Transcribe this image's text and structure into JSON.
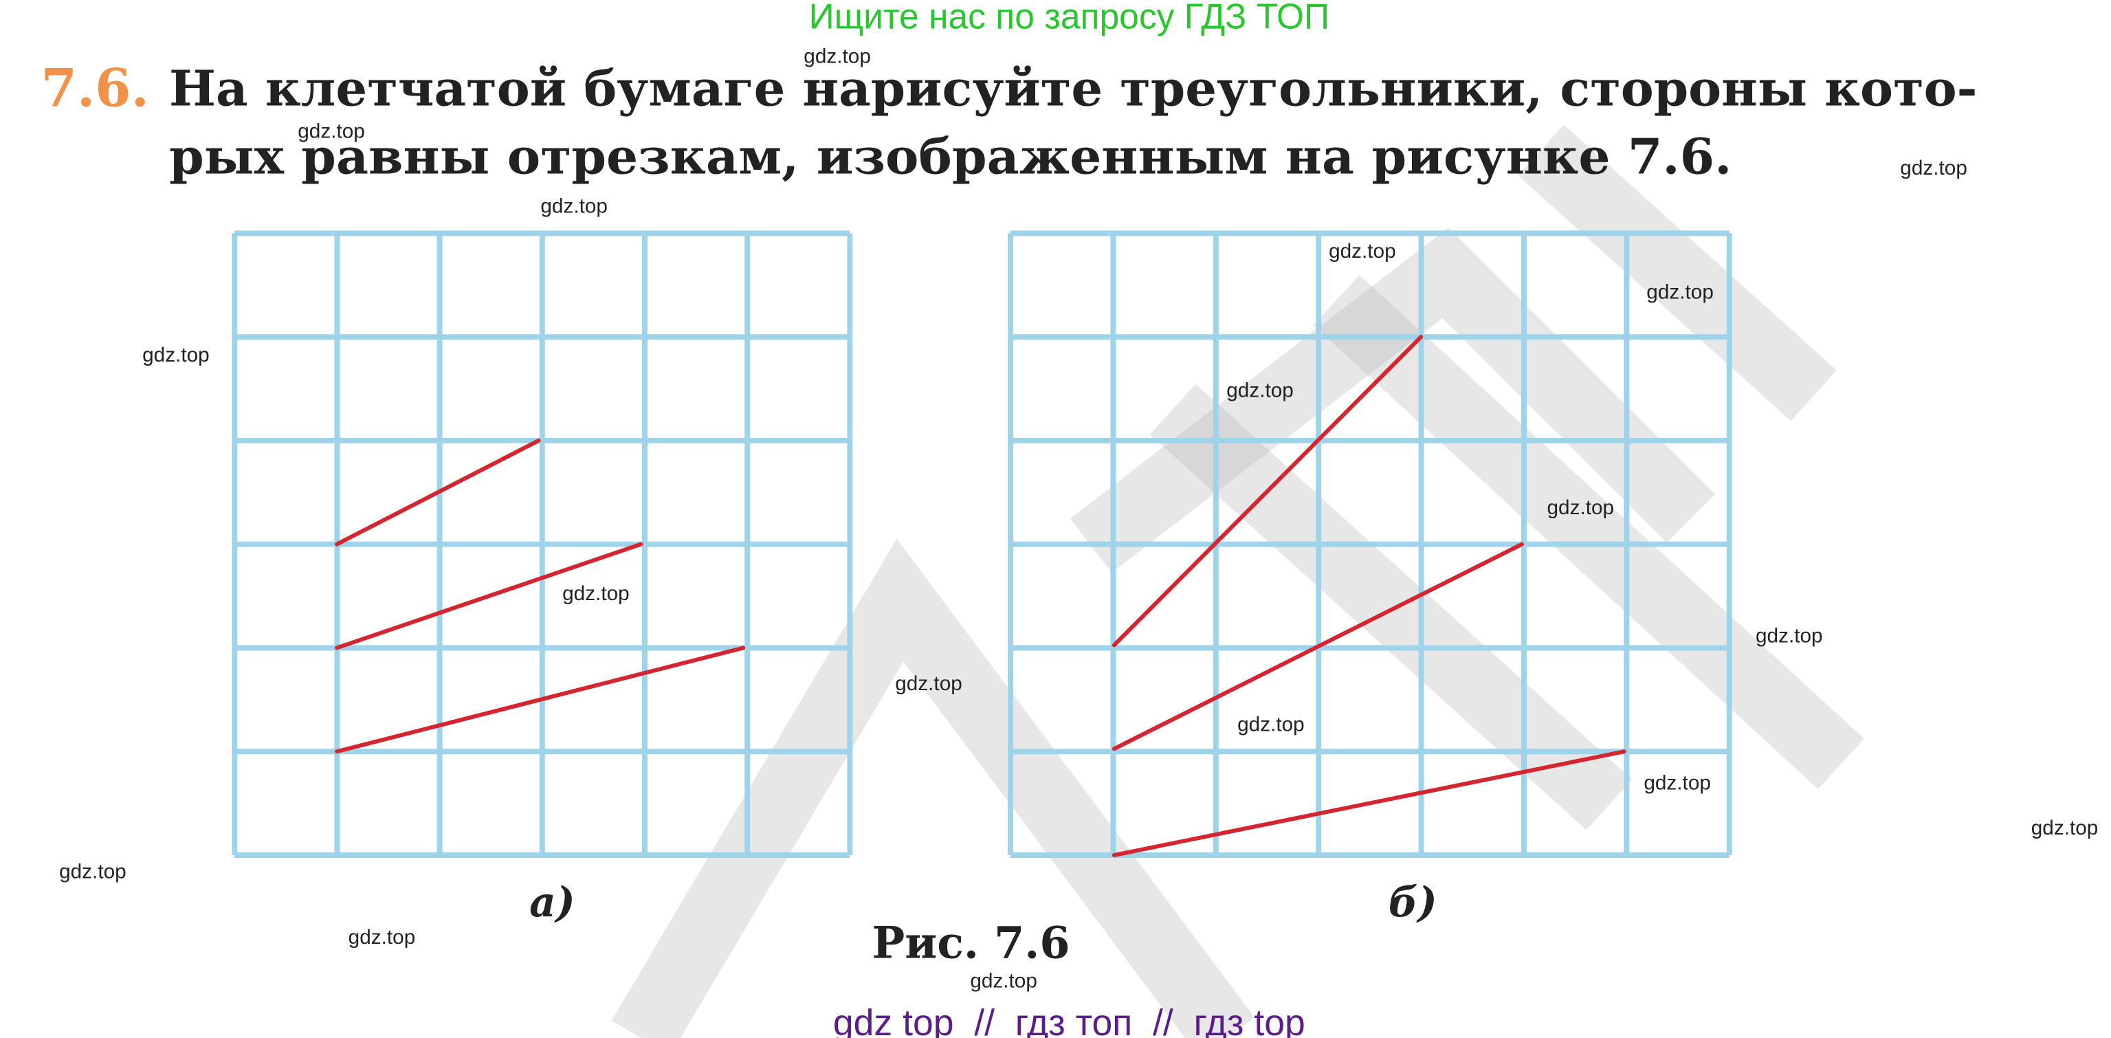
{
  "header": {
    "banner": "Ищите нас по запросу ГДЗ ТОП"
  },
  "problem": {
    "number": "7.6.",
    "lines": [
      "На клетчатой бумаге нарисуйте треугольники, стороны кото-",
      "рых равны отрезкам, изображенным на рисунке 7.6."
    ]
  },
  "figure": {
    "labels": [
      "а)",
      "б)"
    ],
    "caption": "Рис. 7.6"
  },
  "watermarks": [
    "gdz.top",
    "gdz.top",
    "gdz.top",
    "gdz.top",
    "gdz.top",
    "gdz.top",
    "gdz.top",
    "gdz.top",
    "gdz.top",
    "gdz.top",
    "gdz.top",
    "gdz.top",
    "gdz.top",
    "gdz.top",
    "gdz.top",
    "gdz.top",
    "gdz.top",
    "gdz.top"
  ],
  "footer": "gdz top  //  гдз топ  //  гдз top"
}
